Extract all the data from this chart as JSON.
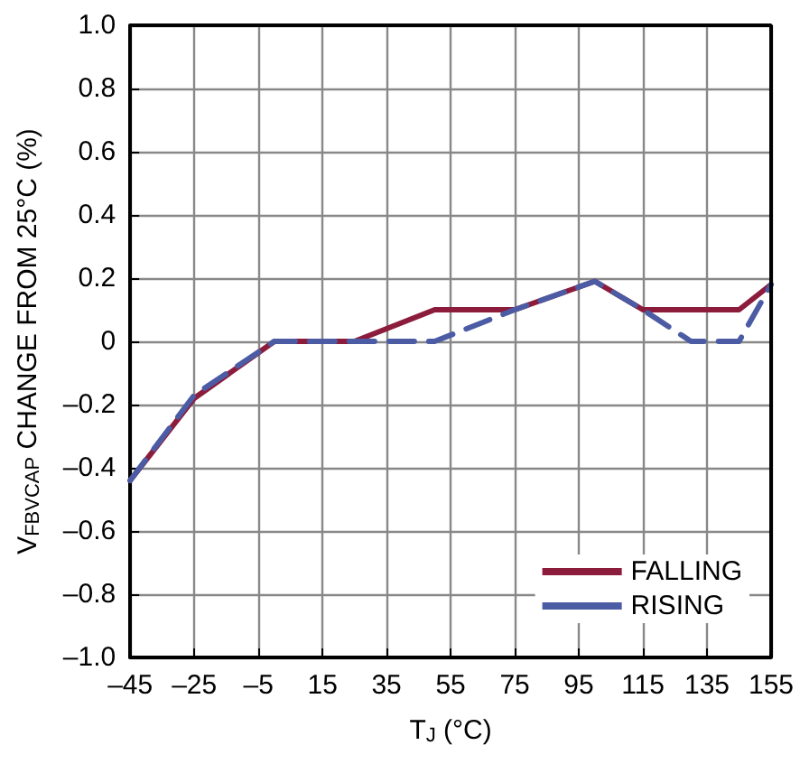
{
  "chart_data": {
    "type": "line",
    "xlabel": "T$_{J}$ (°C)",
    "ylabel": "V$_{FBVCAP}$ CHANGE FROM 25°C (%)",
    "x": [
      -45,
      -25,
      0,
      25,
      50,
      75,
      100,
      115,
      130,
      145,
      155
    ],
    "series": [
      {
        "name": "FALLING",
        "color": "#8b1c3c",
        "line_style": "solid",
        "values": [
          -0.44,
          -0.18,
          0,
          0,
          0.1,
          0.1,
          0.19,
          0.1,
          0.1,
          0.1,
          0.18
        ]
      },
      {
        "name": "RISING",
        "color": "#4c5ca4",
        "line_style": "dashed",
        "values": [
          -0.44,
          -0.17,
          0,
          0,
          0,
          0.1,
          0.19,
          0.1,
          0,
          0,
          0.18
        ]
      }
    ],
    "xlim": [
      -45,
      155
    ],
    "xticks": [
      {
        "value": -45,
        "label": "–45"
      },
      {
        "value": -25,
        "label": "–25"
      },
      {
        "value": -5,
        "label": "–5"
      },
      15,
      35,
      55,
      75,
      95,
      115,
      135,
      155
    ],
    "ylim": [
      -1,
      1
    ],
    "yticks": [
      {
        "value": -1,
        "label": "–1.0"
      },
      {
        "value": -0.8,
        "label": "–0.8"
      },
      {
        "value": -0.6,
        "label": "–0.6"
      },
      {
        "value": -0.4,
        "label": "–0.4"
      },
      {
        "value": -0.2,
        "label": "–0.2"
      },
      0,
      0.2,
      0.4,
      0.6,
      0.8,
      {
        "value": 1,
        "label": "1.0"
      }
    ],
    "grid": true,
    "legend": "bottom right",
    "marker": "none"
  }
}
